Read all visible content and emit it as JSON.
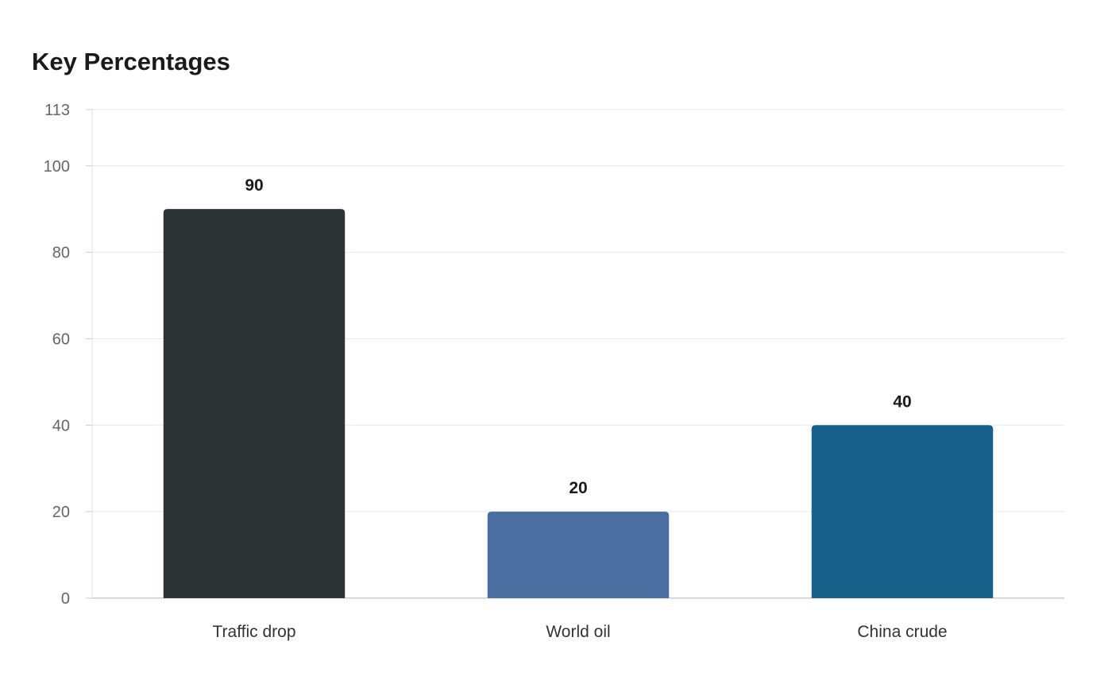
{
  "chart_data": {
    "type": "bar",
    "title": "Key Percentages",
    "xlabel": "",
    "ylabel": "",
    "categories": [
      "Traffic drop",
      "World oil",
      "China crude"
    ],
    "values": [
      90,
      20,
      40
    ],
    "colors": [
      "#2d3436",
      "#4a6ea0",
      "#17618a"
    ],
    "ylim": [
      0,
      113
    ],
    "yticks": [
      0,
      20,
      40,
      60,
      80,
      100,
      113
    ],
    "grid": true,
    "legend": "none"
  }
}
